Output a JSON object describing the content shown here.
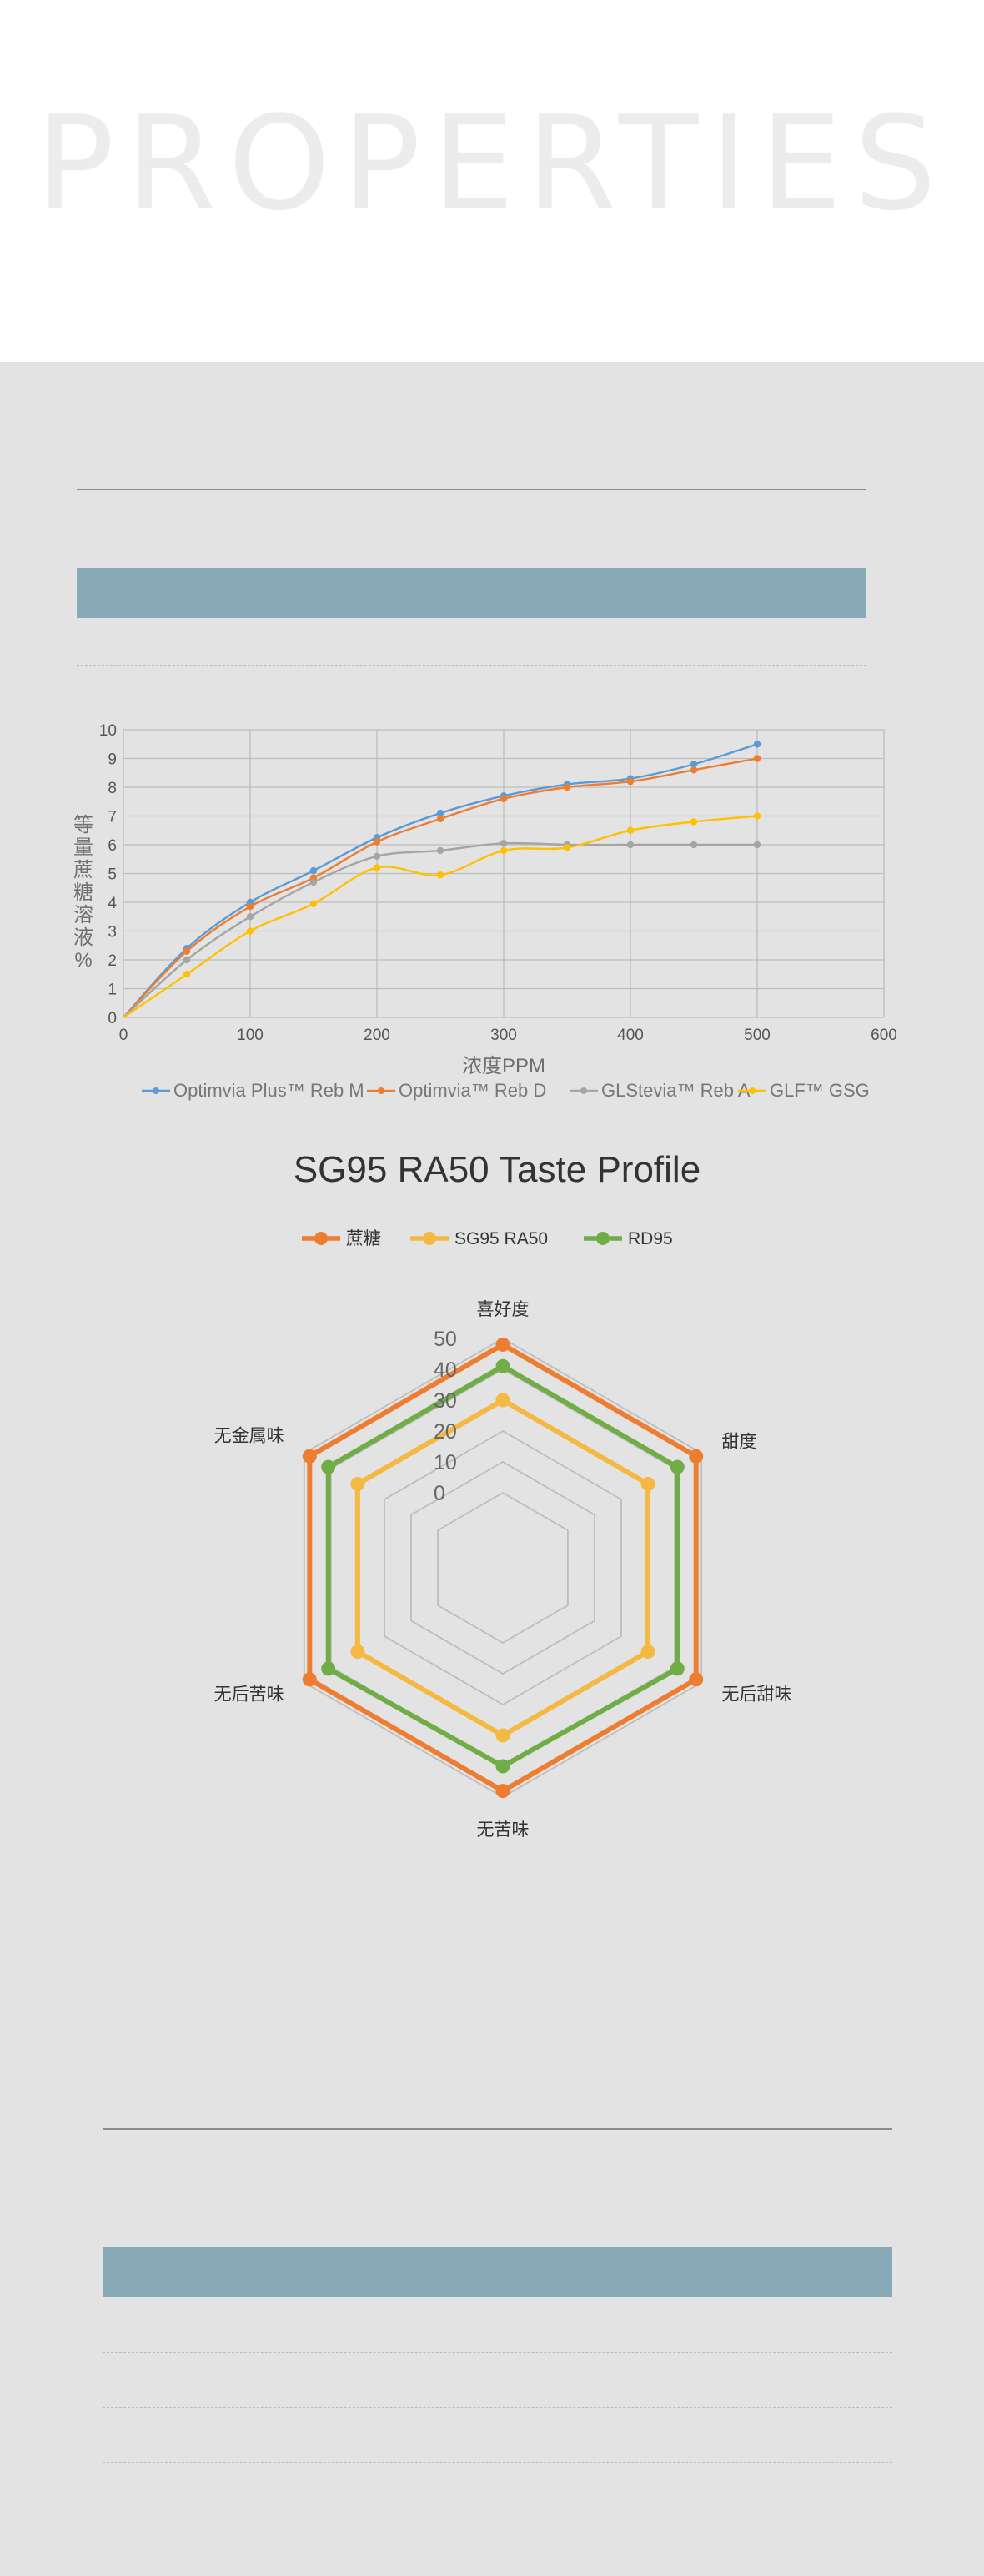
{
  "hero": {
    "title": "PROPERTIES"
  },
  "chart_data": [
    {
      "type": "line",
      "xlabel": "浓度PPM",
      "ylabel": "等量蔗糖溶液%",
      "xlim": [
        0,
        600
      ],
      "ylim": [
        0,
        10
      ],
      "xticks": [
        0,
        100,
        200,
        300,
        400,
        500,
        600
      ],
      "yticks": [
        0,
        1,
        2,
        3,
        4,
        5,
        6,
        7,
        8,
        9,
        10
      ],
      "grid": true,
      "legend": "bottom",
      "x": [
        0,
        50,
        100,
        150,
        200,
        250,
        300,
        350,
        400,
        450,
        500
      ],
      "series": [
        {
          "name": "Optimvia Plus™ Reb M",
          "color": "#5b9bd5",
          "values": [
            0,
            2.4,
            4.0,
            5.1,
            6.25,
            7.1,
            7.7,
            8.1,
            8.3,
            8.8,
            9.5
          ]
        },
        {
          "name": "Optimvia™ Reb D",
          "color": "#ed7d31",
          "values": [
            0,
            2.3,
            3.85,
            4.85,
            6.1,
            6.9,
            7.6,
            8.0,
            8.2,
            8.6,
            9.0
          ]
        },
        {
          "name": "GLStevia™ Reb A",
          "color": "#a5a5a5",
          "values": [
            0,
            2.0,
            3.5,
            4.7,
            5.6,
            5.8,
            6.05,
            6.0,
            6.0,
            6.0,
            6.0
          ]
        },
        {
          "name": "GLF™ GSG",
          "color": "#ffc000",
          "values": [
            0,
            1.5,
            3.0,
            3.95,
            5.2,
            4.95,
            5.8,
            5.9,
            6.5,
            6.8,
            7.0
          ]
        }
      ]
    },
    {
      "type": "radar",
      "title": "SG95 RA50 Taste Profile",
      "legend": "top",
      "categories": [
        "喜好度",
        "甜度",
        "无后甜味",
        "无苦味",
        "无后苦味",
        "无金属味"
      ],
      "rticks": [
        0,
        10,
        20,
        30,
        40,
        50
      ],
      "rlim": [
        0,
        50
      ],
      "series": [
        {
          "name": "蔗糖",
          "color": "#ed7d31",
          "values": [
            48,
            48,
            48,
            48,
            48,
            48
          ]
        },
        {
          "name": "SG95 RA50",
          "color": "#f4b942",
          "values": [
            30,
            30,
            30,
            30,
            30,
            30
          ]
        },
        {
          "name": "RD95",
          "color": "#70ad47",
          "values": [
            41,
            41,
            41,
            40,
            41,
            41
          ]
        }
      ]
    }
  ]
}
